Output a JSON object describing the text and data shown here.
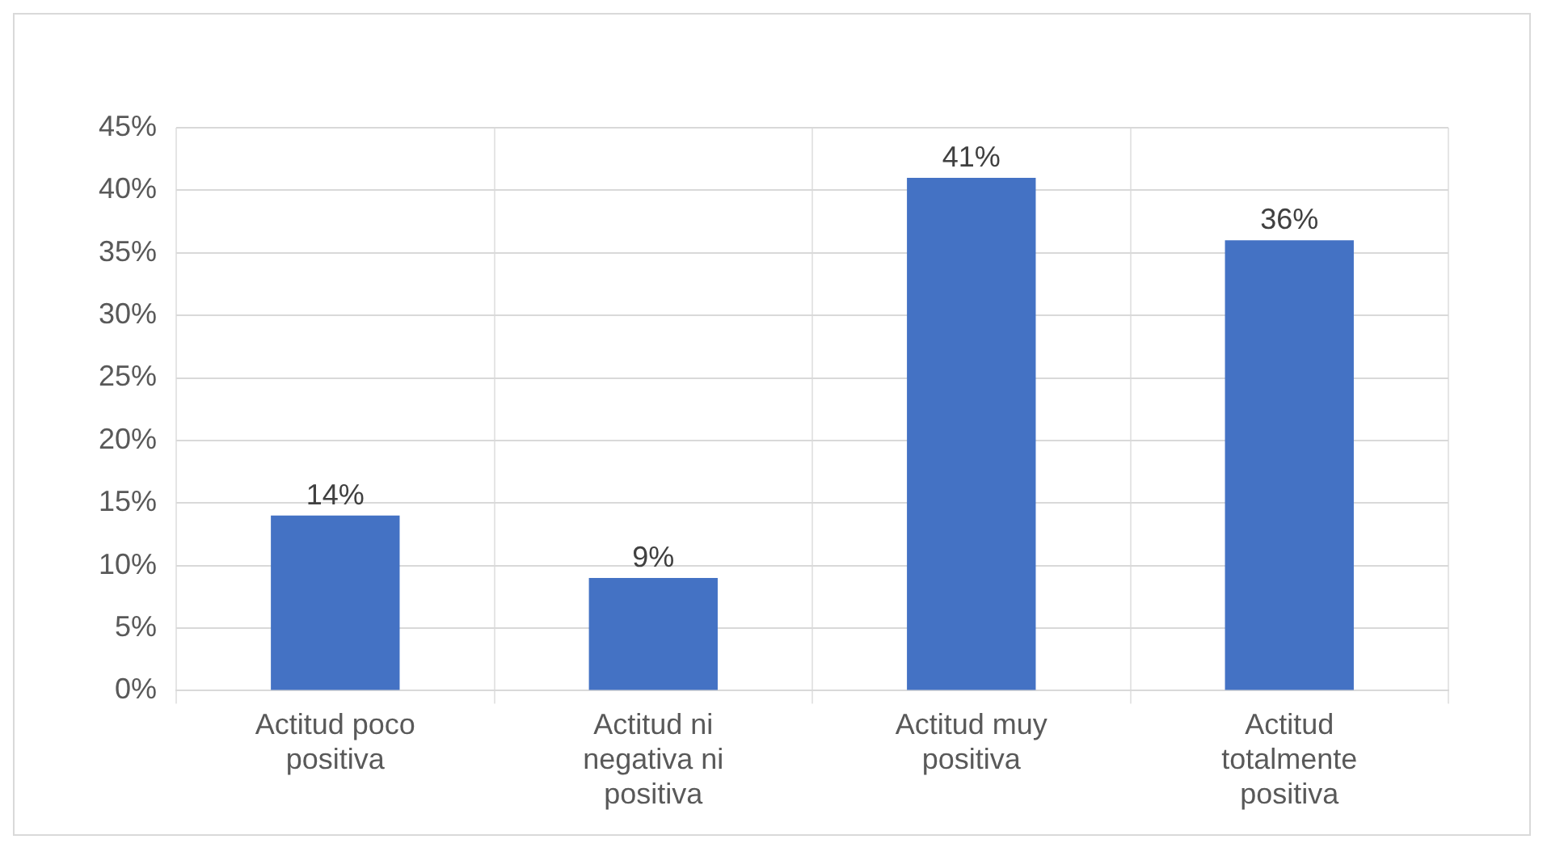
{
  "chart_data": {
    "type": "bar",
    "categories": [
      "Actitud poco positiva",
      "Actitud ni negativa ni positiva",
      "Actitud muy positiva",
      "Actitud totalmente positiva"
    ],
    "values": [
      14,
      9,
      41,
      36
    ],
    "color": "#4472c4",
    "value_labels": [
      "14%",
      "9%",
      "41%",
      "36%"
    ],
    "ylim": [
      0,
      45
    ],
    "yticks": [
      {
        "value": 0,
        "label": "0%"
      },
      {
        "value": 5,
        "label": "5%"
      },
      {
        "value": 10,
        "label": "10%"
      },
      {
        "value": 15,
        "label": "15%"
      },
      {
        "value": 20,
        "label": "20%"
      },
      {
        "value": 25,
        "label": "25%"
      },
      {
        "value": 30,
        "label": "30%"
      },
      {
        "value": 35,
        "label": "35%"
      },
      {
        "value": 40,
        "label": "40%"
      },
      {
        "value": 45,
        "label": "45%"
      }
    ],
    "grid": true,
    "legend": false
  }
}
